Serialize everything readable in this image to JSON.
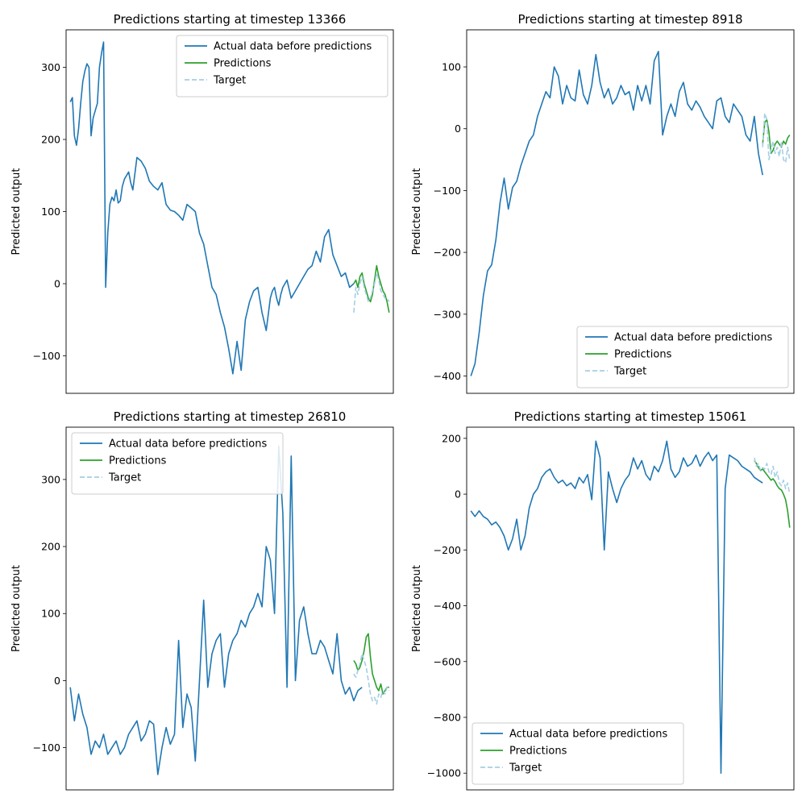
{
  "figure": {
    "background": "#ffffff"
  },
  "colors": {
    "actual": "#1f77b4",
    "predictions": "#2ca02c",
    "target": "#a6cee3"
  },
  "chart_data": [
    {
      "type": "line",
      "title": "Predictions starting at timestep 13366",
      "ylabel": "Predicted output",
      "xlabel": "",
      "ylim": [
        -152,
        352
      ],
      "yticks": [
        -100,
        0,
        100,
        200,
        300
      ],
      "xticks_visible": false,
      "xlim": [
        -2,
        155
      ],
      "legend": {
        "placement": "top-right",
        "entries": [
          "Actual data before predictions",
          "Predictions",
          "Target"
        ]
      },
      "series": [
        {
          "name": "Actual data before predictions",
          "style": "solid",
          "x": [
            0,
            1,
            2,
            3,
            4,
            5,
            6,
            7,
            8,
            9,
            10,
            11,
            12,
            13,
            14,
            15,
            16,
            17,
            18,
            18.5,
            19,
            20,
            21,
            22,
            23,
            24,
            25,
            26,
            27,
            28,
            29,
            30,
            32,
            34,
            36,
            38,
            40,
            42,
            44,
            46,
            48,
            50,
            52,
            54,
            56,
            58,
            60,
            62,
            64,
            66,
            68,
            70,
            72,
            74,
            76,
            78,
            80,
            82,
            84,
            86,
            88,
            90,
            92,
            94,
            96,
            97,
            98,
            99,
            100,
            101,
            102,
            104,
            106,
            108,
            110,
            112,
            114,
            116,
            118,
            120,
            122,
            124,
            126,
            128,
            130,
            132,
            134,
            136
          ],
          "y": [
            252,
            258,
            205,
            192,
            215,
            250,
            280,
            295,
            305,
            300,
            205,
            230,
            240,
            250,
            300,
            320,
            335,
            -5,
            70,
            90,
            110,
            120,
            115,
            130,
            112,
            115,
            135,
            145,
            150,
            155,
            140,
            130,
            175,
            170,
            160,
            142,
            135,
            130,
            140,
            110,
            102,
            100,
            95,
            88,
            110,
            105,
            100,
            70,
            55,
            25,
            -5,
            -15,
            -40,
            -60,
            -90,
            -125,
            -80,
            -120,
            -50,
            -25,
            -10,
            -5,
            -40,
            -65,
            -20,
            -10,
            -5,
            -20,
            -30,
            -15,
            -5,
            5,
            -20,
            -10,
            0,
            10,
            20,
            25,
            45,
            30,
            65,
            75,
            40,
            25,
            10,
            15,
            -5,
            0
          ]
        },
        {
          "name": "Predictions",
          "style": "solid",
          "x": [
            136,
            137,
            138,
            139,
            140,
            141,
            142,
            143,
            144,
            145,
            146,
            147,
            148,
            149,
            150,
            151,
            152,
            153
          ],
          "y": [
            0,
            5,
            -5,
            10,
            15,
            0,
            -10,
            -20,
            -25,
            -15,
            5,
            25,
            10,
            0,
            -10,
            -15,
            -25,
            -40
          ]
        },
        {
          "name": "Target",
          "style": "dashed",
          "x": [
            136,
            137,
            138,
            139,
            140,
            141,
            142,
            143,
            144,
            145,
            146,
            147,
            148,
            149,
            150,
            151,
            152,
            153
          ],
          "y": [
            -40,
            -5,
            -15,
            0,
            10,
            -5,
            -15,
            -25,
            -20,
            -10,
            0,
            15,
            5,
            -10,
            -15,
            -20,
            -20,
            -25
          ]
        }
      ]
    },
    {
      "type": "line",
      "title": "Predictions starting at timestep 8918",
      "ylabel": "Predicted output",
      "xlabel": "",
      "ylim": [
        -428,
        160
      ],
      "yticks": [
        -400,
        -300,
        -200,
        -100,
        0,
        100
      ],
      "xticks_visible": false,
      "xlim": [
        -2,
        155
      ],
      "legend": {
        "placement": "bottom-right",
        "entries": [
          "Actual data before predictions",
          "Predictions",
          "Target"
        ]
      },
      "series": [
        {
          "name": "Actual data before predictions",
          "style": "solid",
          "x": [
            0,
            2,
            4,
            6,
            8,
            10,
            12,
            14,
            16,
            18,
            20,
            22,
            24,
            26,
            28,
            30,
            32,
            34,
            36,
            38,
            40,
            42,
            44,
            46,
            48,
            50,
            52,
            54,
            56,
            58,
            60,
            62,
            64,
            66,
            68,
            70,
            72,
            74,
            76,
            78,
            80,
            82,
            84,
            86,
            88,
            90,
            92,
            94,
            96,
            98,
            100,
            102,
            104,
            106,
            108,
            110,
            112,
            114,
            116,
            118,
            120,
            122,
            124,
            126,
            128,
            130,
            132,
            134,
            136,
            138,
            140
          ],
          "y": [
            -400,
            -380,
            -330,
            -270,
            -230,
            -220,
            -180,
            -120,
            -80,
            -130,
            -95,
            -85,
            -60,
            -40,
            -20,
            -10,
            20,
            40,
            60,
            50,
            100,
            85,
            40,
            70,
            50,
            45,
            95,
            55,
            40,
            70,
            120,
            75,
            50,
            65,
            40,
            50,
            70,
            55,
            60,
            30,
            70,
            45,
            70,
            40,
            110,
            125,
            -10,
            20,
            40,
            20,
            60,
            75,
            40,
            30,
            45,
            35,
            20,
            10,
            0,
            45,
            50,
            20,
            10,
            40,
            30,
            20,
            -10,
            -20,
            20,
            -40,
            -75
          ]
        },
        {
          "name": "Predictions",
          "style": "solid",
          "x": [
            140,
            141,
            142,
            143,
            144,
            145,
            146,
            147,
            148,
            149,
            150,
            151,
            152,
            153
          ],
          "y": [
            -25,
            10,
            15,
            -5,
            -40,
            -35,
            -25,
            -20,
            -25,
            -30,
            -20,
            -25,
            -15,
            -10
          ]
        },
        {
          "name": "Target",
          "style": "dashed",
          "x": [
            140,
            141,
            142,
            143,
            144,
            145,
            146,
            147,
            148,
            149,
            150,
            151,
            152,
            153
          ],
          "y": [
            -30,
            25,
            15,
            -50,
            -35,
            -20,
            -40,
            -30,
            -45,
            -20,
            -50,
            -55,
            -30,
            -50
          ]
        }
      ]
    },
    {
      "type": "line",
      "title": "Predictions starting at timestep 26810",
      "ylabel": "Predicted output",
      "xlabel": "",
      "ylim": [
        -163,
        378
      ],
      "yticks": [
        -100,
        0,
        100,
        200,
        300
      ],
      "xticks_visible": false,
      "xlim": [
        -2,
        155
      ],
      "legend": {
        "placement": "top-left",
        "entries": [
          "Actual data before predictions",
          "Predictions",
          "Target"
        ]
      },
      "series": [
        {
          "name": "Actual data before predictions",
          "style": "solid",
          "x": [
            0,
            2,
            4,
            6,
            8,
            10,
            12,
            14,
            16,
            18,
            20,
            22,
            24,
            26,
            28,
            30,
            32,
            34,
            36,
            38,
            40,
            42,
            44,
            46,
            48,
            50,
            52,
            54,
            56,
            58,
            60,
            62,
            64,
            66,
            68,
            70,
            72,
            74,
            76,
            78,
            80,
            82,
            84,
            86,
            88,
            90,
            92,
            94,
            96,
            98,
            100,
            102,
            104,
            106,
            108,
            110,
            112,
            114,
            116,
            118,
            120,
            122,
            124,
            126,
            128,
            130,
            132,
            134,
            136,
            138,
            140
          ],
          "y": [
            -10,
            -60,
            -20,
            -50,
            -70,
            -110,
            -90,
            -100,
            -80,
            -110,
            -100,
            -90,
            -110,
            -100,
            -80,
            -70,
            -60,
            -90,
            -80,
            -60,
            -65,
            -140,
            -100,
            -70,
            -95,
            -80,
            60,
            -70,
            -20,
            -40,
            -120,
            0,
            120,
            -10,
            40,
            60,
            70,
            -10,
            40,
            60,
            70,
            90,
            80,
            100,
            110,
            130,
            110,
            200,
            180,
            100,
            350,
            250,
            -10,
            335,
            0,
            90,
            110,
            70,
            40,
            40,
            60,
            50,
            30,
            10,
            70,
            0,
            -20,
            -10,
            -30,
            -15,
            -10
          ]
        },
        {
          "name": "Predictions",
          "style": "solid",
          "x": [
            136,
            137,
            138,
            139,
            140,
            141,
            142,
            143,
            144,
            145,
            146,
            147,
            148,
            149,
            150,
            151,
            152,
            153
          ],
          "y": [
            30,
            25,
            15,
            20,
            30,
            45,
            65,
            70,
            35,
            10,
            0,
            -10,
            -15,
            -5,
            -20,
            -15,
            -10,
            -10
          ]
        },
        {
          "name": "Target",
          "style": "dashed",
          "x": [
            136,
            137,
            138,
            139,
            140,
            141,
            142,
            143,
            144,
            145,
            146,
            147,
            148,
            149,
            150,
            151,
            152,
            153
          ],
          "y": [
            10,
            5,
            15,
            25,
            40,
            30,
            20,
            0,
            -20,
            -30,
            -25,
            -35,
            -20,
            -25,
            -15,
            -20,
            -10,
            -15
          ]
        }
      ]
    },
    {
      "type": "line",
      "title": "Predictions starting at timestep 15061",
      "ylabel": "Predicted output",
      "xlabel": "",
      "ylim": [
        -1060,
        240
      ],
      "yticks": [
        -1000,
        -800,
        -600,
        -400,
        -200,
        0,
        200
      ],
      "xticks_visible": false,
      "xlim": [
        -2,
        155
      ],
      "legend": {
        "placement": "bottom-left",
        "entries": [
          "Actual data before predictions",
          "Predictions",
          "Target"
        ]
      },
      "series": [
        {
          "name": "Actual data before predictions",
          "style": "solid",
          "x": [
            0,
            2,
            4,
            6,
            8,
            10,
            12,
            14,
            16,
            18,
            20,
            22,
            24,
            26,
            28,
            30,
            32,
            34,
            36,
            38,
            40,
            42,
            44,
            46,
            48,
            50,
            52,
            54,
            56,
            58,
            60,
            62,
            64,
            66,
            68,
            70,
            72,
            74,
            76,
            78,
            80,
            82,
            84,
            86,
            88,
            90,
            92,
            94,
            96,
            98,
            100,
            102,
            104,
            106,
            108,
            110,
            112,
            114,
            116,
            118,
            120,
            122,
            124,
            126,
            128,
            130,
            132,
            134,
            136,
            138,
            140
          ],
          "y": [
            -60,
            -80,
            -60,
            -80,
            -90,
            -110,
            -100,
            -120,
            -150,
            -200,
            -160,
            -90,
            -200,
            -150,
            -50,
            0,
            20,
            60,
            80,
            90,
            60,
            40,
            50,
            30,
            40,
            20,
            60,
            40,
            70,
            -20,
            190,
            130,
            -200,
            80,
            20,
            -30,
            20,
            50,
            70,
            130,
            90,
            120,
            70,
            50,
            100,
            80,
            120,
            190,
            90,
            60,
            80,
            130,
            100,
            110,
            140,
            100,
            130,
            150,
            120,
            140,
            -1000,
            20,
            140,
            130,
            120,
            100,
            90,
            80,
            60,
            50,
            40
          ]
        },
        {
          "name": "Predictions",
          "style": "solid",
          "x": [
            136,
            137,
            138,
            139,
            140,
            141,
            142,
            143,
            144,
            145,
            146,
            147,
            148,
            149,
            150,
            151,
            152,
            153
          ],
          "y": [
            120,
            110,
            95,
            85,
            90,
            80,
            70,
            60,
            50,
            55,
            45,
            30,
            20,
            15,
            0,
            -20,
            -60,
            -120
          ]
        },
        {
          "name": "Target",
          "style": "dashed",
          "x": [
            136,
            137,
            138,
            139,
            140,
            141,
            142,
            143,
            144,
            145,
            146,
            147,
            148,
            149,
            150,
            151,
            152,
            153
          ],
          "y": [
            130,
            100,
            110,
            85,
            95,
            90,
            110,
            80,
            70,
            100,
            60,
            80,
            40,
            30,
            50,
            20,
            40,
            0
          ]
        }
      ]
    }
  ]
}
